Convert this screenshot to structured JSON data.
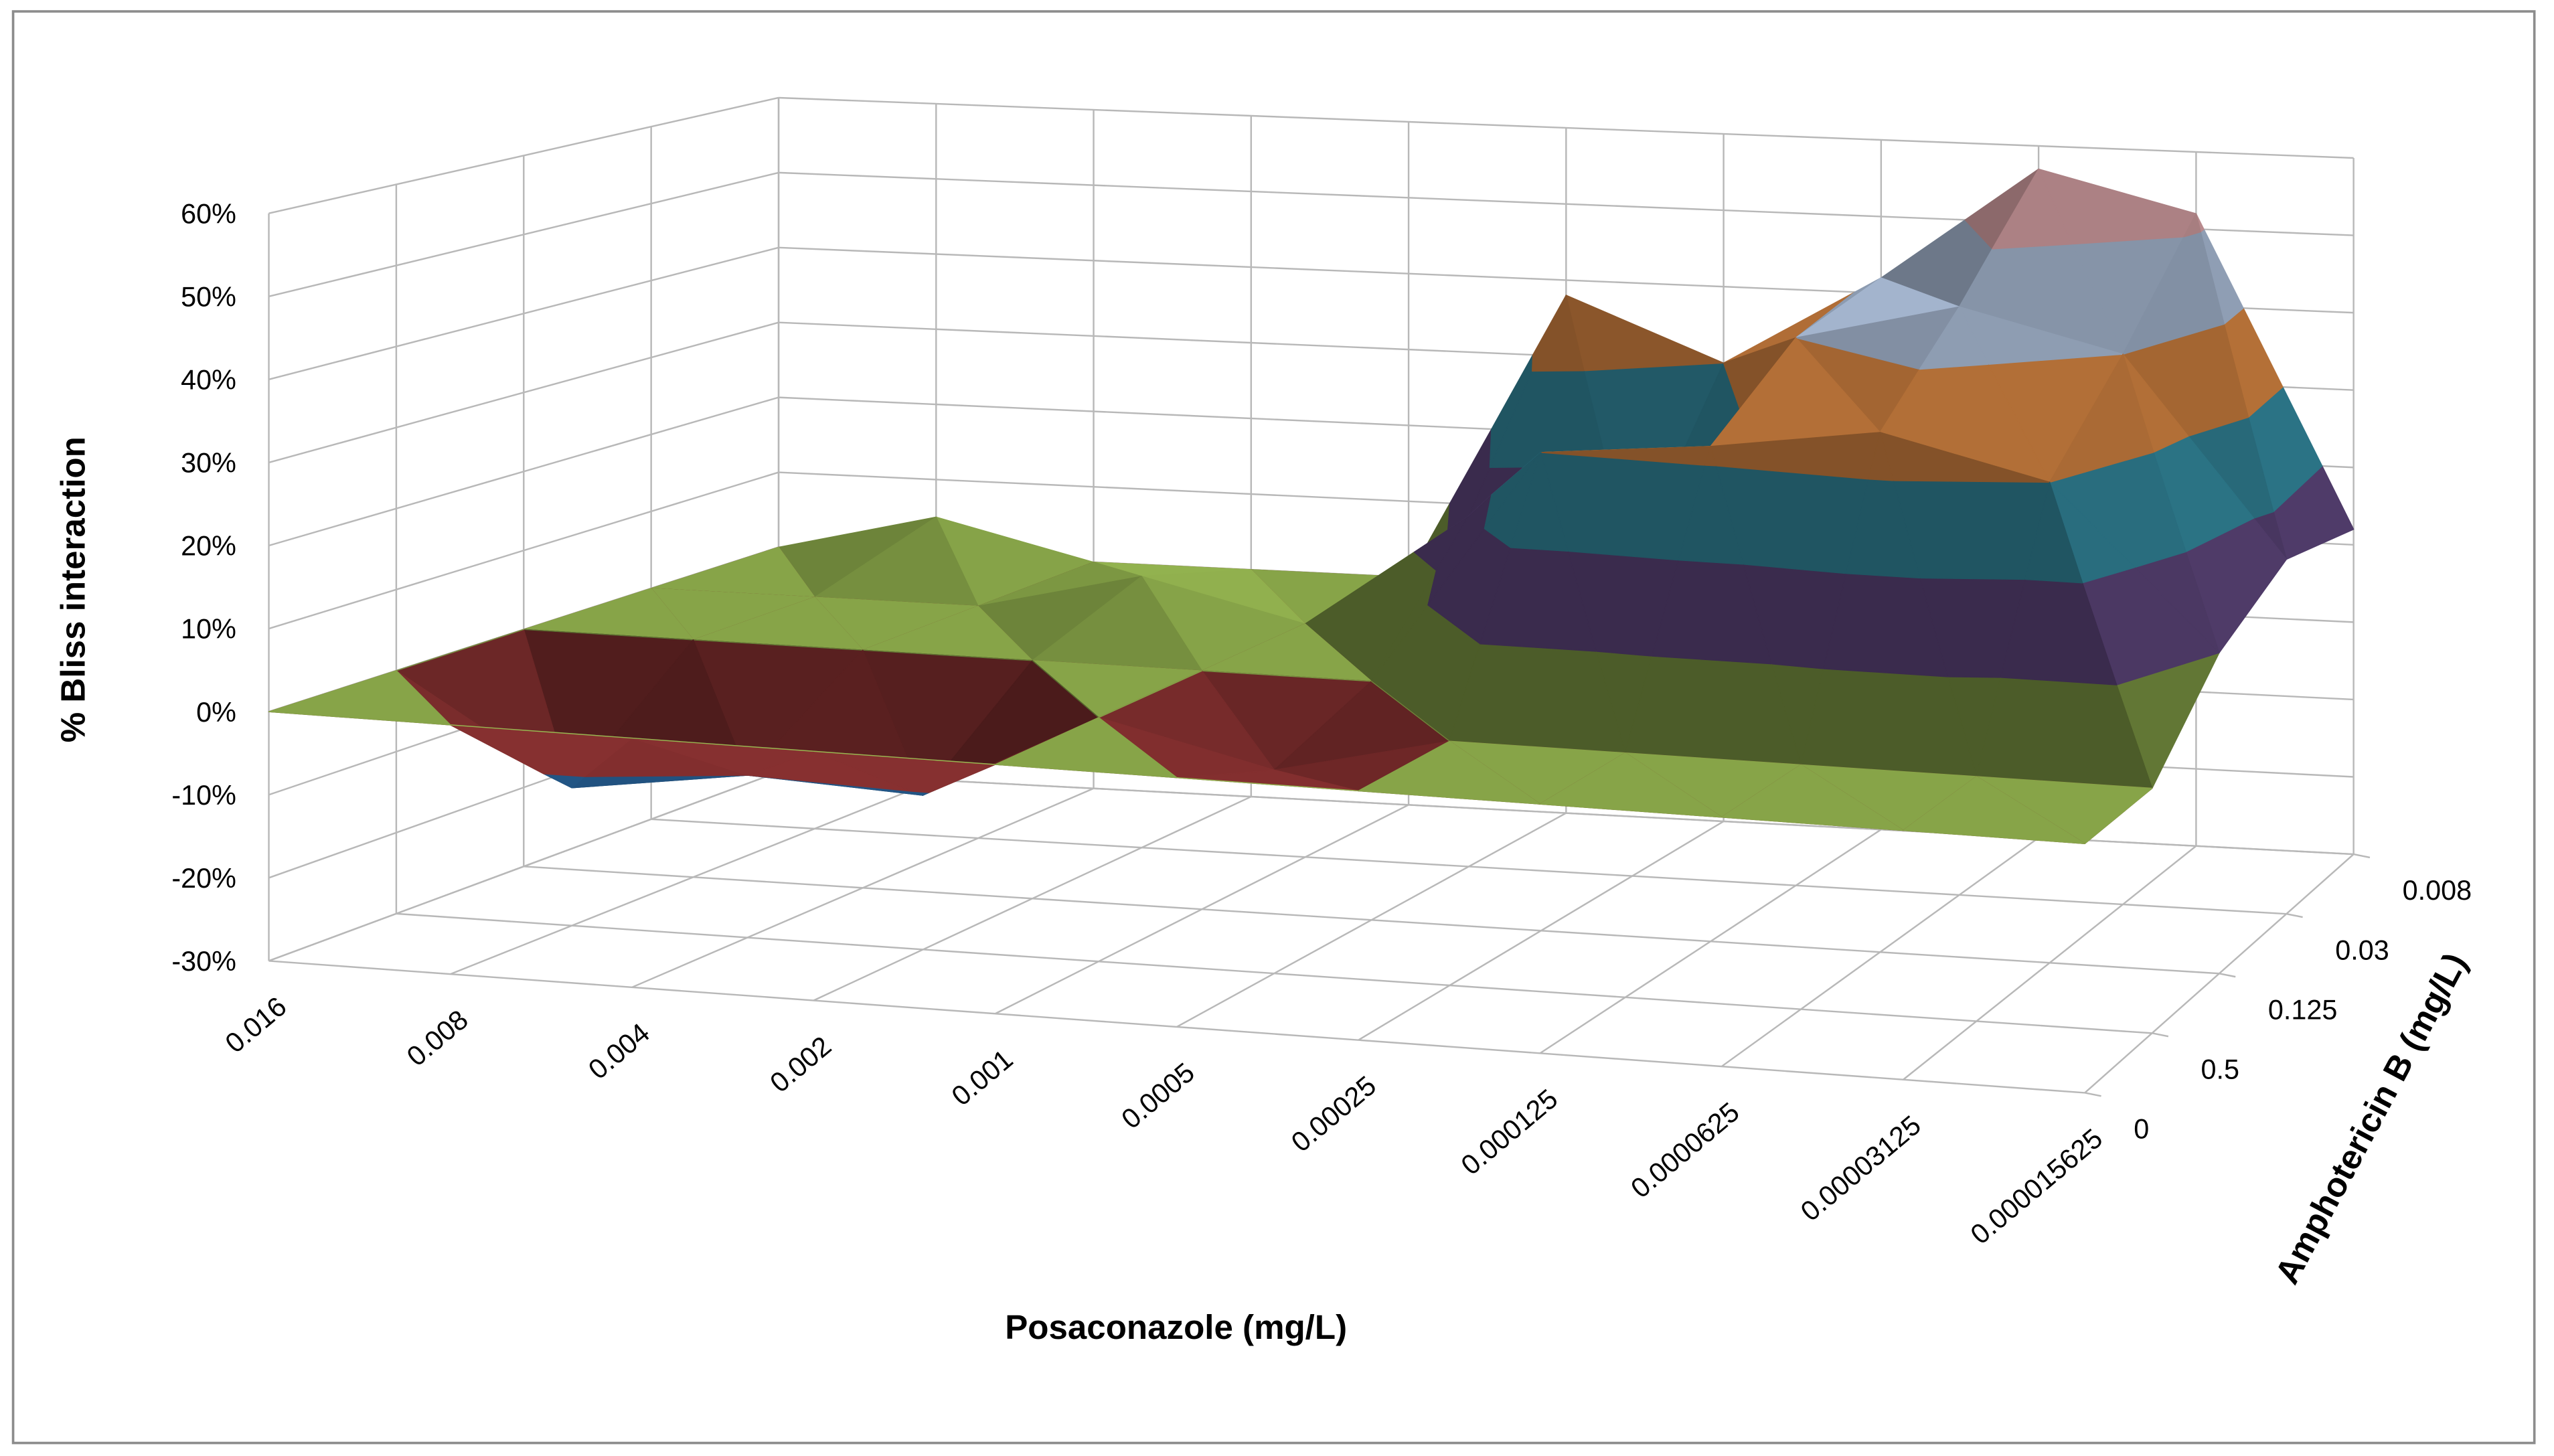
{
  "chart_data": {
    "type": "surface",
    "x_title": "Posaconazole (mg/L)",
    "y_title": "Amphotericin B (mg/L)",
    "z_title": "% Bliss interaction",
    "categories": [
      "0.016",
      "0.008",
      "0.004",
      "0.002",
      "0.001",
      "0.0005",
      "0.00025",
      "0.000125",
      "0.0000625",
      "0.00003125",
      "0.000015625"
    ],
    "depth_categories": [
      "0.008",
      "0.03",
      "0.125",
      "0.5",
      "0"
    ],
    "values": [
      [
        0,
        5,
        0,
        0,
        0,
        38,
        30,
        42,
        57,
        52,
        12
      ],
      [
        0,
        0,
        0,
        5,
        0,
        15,
        10,
        40,
        45,
        40,
        15
      ],
      [
        0,
        0,
        0,
        0,
        0,
        0,
        30,
        32,
        35,
        30,
        10
      ],
      [
        0,
        -13,
        -10,
        -11,
        0,
        -5,
        0,
        0,
        0,
        0,
        0
      ],
      [
        0,
        0,
        0,
        0,
        0,
        0,
        0,
        0,
        0,
        0,
        0
      ]
    ],
    "zlim": [
      -30,
      60
    ],
    "zticks": [
      {
        "value": -30,
        "label": "-30%"
      },
      {
        "value": -20,
        "label": "-20%"
      },
      {
        "value": -10,
        "label": "-10%"
      },
      {
        "value": 0,
        "label": "0%"
      },
      {
        "value": 10,
        "label": "10%"
      },
      {
        "value": 20,
        "label": "20%"
      },
      {
        "value": 30,
        "label": "30%"
      },
      {
        "value": 40,
        "label": "40%"
      },
      {
        "value": 50,
        "label": "50%"
      },
      {
        "value": 60,
        "label": "60%"
      }
    ],
    "band_colors": [
      "#1F3864",
      "#1F4E79",
      "#7B2C2C",
      "#8AA84A",
      "#6A4F8C",
      "#3A9AB2",
      "#F0954A",
      "#BFD3F0",
      "#F5B8BC"
    ],
    "grid": true
  }
}
